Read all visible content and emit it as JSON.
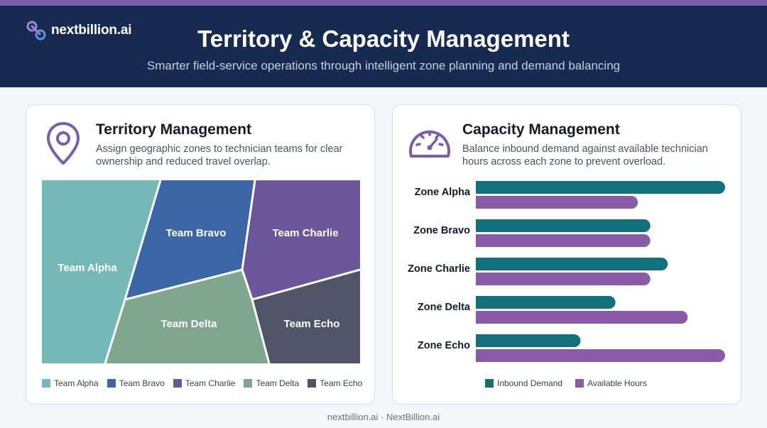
{
  "brand": {
    "logo_text": "nextbillion.ai"
  },
  "header": {
    "title": "Territory & Capacity Management",
    "subtitle": "Smarter field-service operations through intelligent zone planning and demand balancing"
  },
  "territory": {
    "title": "Territory Management",
    "description": "Assign geographic zones to technician teams for clear ownership and reduced travel overlap.",
    "icon": "map-pin-icon",
    "teams": [
      {
        "name": "Team Alpha",
        "color": "#74b9b7"
      },
      {
        "name": "Team Bravo",
        "color": "#3b67a6"
      },
      {
        "name": "Team Charlie",
        "color": "#6a5699"
      },
      {
        "name": "Team Delta",
        "color": "#7fa68e"
      },
      {
        "name": "Team Echo",
        "color": "#4f5567"
      }
    ]
  },
  "capacity": {
    "title": "Capacity Management",
    "description": "Balance inbound demand against available technician hours across each zone to prevent overload.",
    "icon": "gauge-icon"
  },
  "chart_data": {
    "type": "bar",
    "orientation": "horizontal",
    "categories": [
      "Zone Alpha",
      "Zone Bravo",
      "Zone Charlie",
      "Zone Delta",
      "Zone Echo"
    ],
    "series": [
      {
        "name": "Inbound Demand",
        "color": "#12707a",
        "values": [
          100,
          70,
          77,
          56,
          42
        ]
      },
      {
        "name": "Available Hours",
        "color": "#8b5aa8",
        "values": [
          65,
          70,
          70,
          85,
          100
        ]
      }
    ],
    "xlim": [
      0,
      100
    ],
    "grid": false,
    "legend": "bottom"
  },
  "footer": {
    "text": "nextbillion.ai · NextBillion.ai"
  }
}
